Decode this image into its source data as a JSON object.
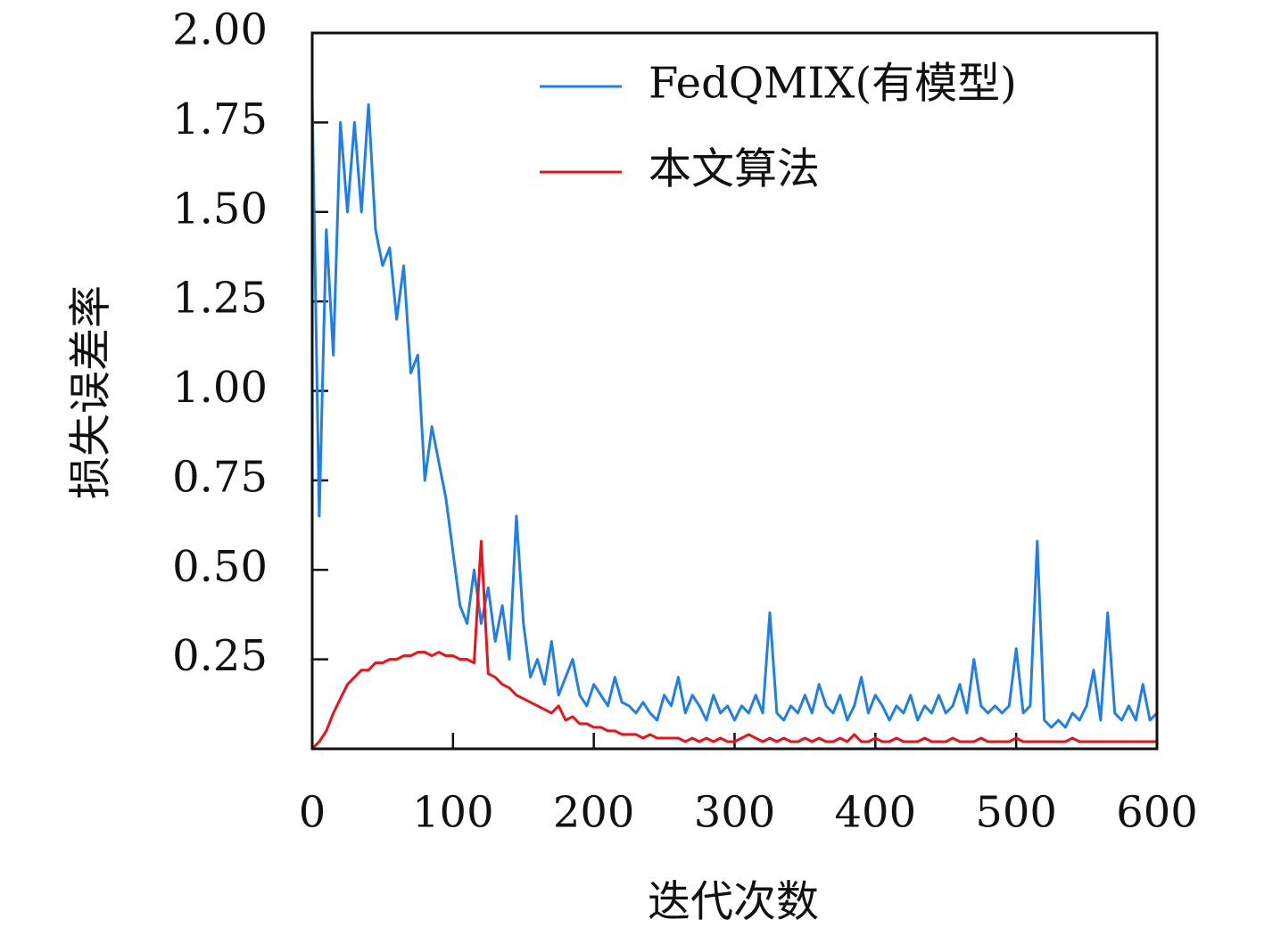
{
  "chart_data": {
    "type": "line",
    "x_label": "迭代次数",
    "y_label": "损失误差率",
    "x": [
      0,
      5,
      10,
      15,
      20,
      25,
      30,
      35,
      40,
      45,
      50,
      55,
      60,
      65,
      70,
      75,
      80,
      85,
      90,
      95,
      100,
      105,
      110,
      115,
      120,
      125,
      130,
      135,
      140,
      145,
      150,
      155,
      160,
      165,
      170,
      175,
      180,
      185,
      190,
      195,
      200,
      205,
      210,
      215,
      220,
      225,
      230,
      235,
      240,
      245,
      250,
      255,
      260,
      265,
      270,
      275,
      280,
      285,
      290,
      295,
      300,
      305,
      310,
      315,
      320,
      325,
      330,
      335,
      340,
      345,
      350,
      355,
      360,
      365,
      370,
      375,
      380,
      385,
      390,
      395,
      400,
      405,
      410,
      415,
      420,
      425,
      430,
      435,
      440,
      445,
      450,
      455,
      460,
      465,
      470,
      475,
      480,
      485,
      490,
      495,
      500,
      505,
      510,
      515,
      520,
      525,
      530,
      535,
      540,
      545,
      550,
      555,
      560,
      565,
      570,
      575,
      580,
      585,
      590,
      595,
      600
    ],
    "series": [
      {
        "name": "FedQMIX(有模型)",
        "color": "#1f7fe6",
        "values": [
          1.82,
          0.65,
          1.45,
          1.1,
          1.75,
          1.5,
          1.75,
          1.5,
          1.8,
          1.45,
          1.35,
          1.4,
          1.2,
          1.35,
          1.05,
          1.1,
          0.75,
          0.9,
          0.8,
          0.7,
          0.55,
          0.4,
          0.35,
          0.5,
          0.35,
          0.45,
          0.3,
          0.4,
          0.25,
          0.65,
          0.35,
          0.2,
          0.25,
          0.18,
          0.3,
          0.15,
          0.2,
          0.25,
          0.15,
          0.12,
          0.18,
          0.15,
          0.12,
          0.2,
          0.13,
          0.12,
          0.1,
          0.13,
          0.1,
          0.08,
          0.15,
          0.12,
          0.2,
          0.1,
          0.15,
          0.12,
          0.08,
          0.15,
          0.1,
          0.12,
          0.08,
          0.12,
          0.1,
          0.15,
          0.1,
          0.38,
          0.1,
          0.08,
          0.12,
          0.1,
          0.15,
          0.1,
          0.18,
          0.12,
          0.1,
          0.15,
          0.08,
          0.12,
          0.2,
          0.1,
          0.15,
          0.12,
          0.08,
          0.12,
          0.1,
          0.15,
          0.08,
          0.12,
          0.1,
          0.15,
          0.1,
          0.12,
          0.18,
          0.1,
          0.25,
          0.12,
          0.1,
          0.12,
          0.1,
          0.12,
          0.28,
          0.1,
          0.12,
          0.58,
          0.08,
          0.06,
          0.08,
          0.06,
          0.1,
          0.08,
          0.12,
          0.22,
          0.08,
          0.38,
          0.1,
          0.08,
          0.12,
          0.08,
          0.18,
          0.08,
          0.1
        ]
      },
      {
        "name": "本文算法",
        "color": "#e8141a",
        "values": [
          0.0,
          0.02,
          0.05,
          0.1,
          0.14,
          0.18,
          0.2,
          0.22,
          0.22,
          0.24,
          0.24,
          0.25,
          0.25,
          0.26,
          0.26,
          0.27,
          0.27,
          0.26,
          0.27,
          0.26,
          0.26,
          0.25,
          0.25,
          0.24,
          0.58,
          0.21,
          0.2,
          0.18,
          0.17,
          0.15,
          0.14,
          0.13,
          0.12,
          0.11,
          0.1,
          0.12,
          0.08,
          0.09,
          0.07,
          0.07,
          0.06,
          0.06,
          0.05,
          0.05,
          0.04,
          0.04,
          0.04,
          0.03,
          0.04,
          0.03,
          0.03,
          0.03,
          0.03,
          0.02,
          0.03,
          0.02,
          0.03,
          0.02,
          0.03,
          0.02,
          0.02,
          0.03,
          0.04,
          0.03,
          0.02,
          0.03,
          0.02,
          0.03,
          0.02,
          0.02,
          0.03,
          0.02,
          0.03,
          0.02,
          0.02,
          0.03,
          0.02,
          0.04,
          0.02,
          0.02,
          0.03,
          0.02,
          0.02,
          0.03,
          0.02,
          0.02,
          0.02,
          0.03,
          0.02,
          0.02,
          0.02,
          0.03,
          0.02,
          0.02,
          0.02,
          0.03,
          0.02,
          0.02,
          0.02,
          0.02,
          0.03,
          0.02,
          0.02,
          0.02,
          0.02,
          0.02,
          0.02,
          0.02,
          0.03,
          0.02,
          0.02,
          0.02,
          0.02,
          0.02,
          0.02,
          0.02,
          0.02,
          0.02,
          0.02,
          0.02,
          0.02
        ]
      }
    ],
    "xlim": [
      0,
      600
    ],
    "xticks": [
      0,
      100,
      200,
      300,
      400,
      500,
      600
    ],
    "ylim": [
      0,
      2
    ],
    "yticks": [
      {
        "value": 0.25,
        "label": "0.25"
      },
      {
        "value": 0.5,
        "label": "0.50"
      },
      {
        "value": 0.75,
        "label": "0.75"
      },
      {
        "value": 1,
        "label": "1.00"
      },
      {
        "value": 1.25,
        "label": "1.25"
      },
      {
        "value": 1.5,
        "label": "1.50"
      },
      {
        "value": 1.75,
        "label": "1.75"
      },
      {
        "value": 2,
        "label": "2.00"
      }
    ],
    "grid": false,
    "legend": "upper right"
  }
}
